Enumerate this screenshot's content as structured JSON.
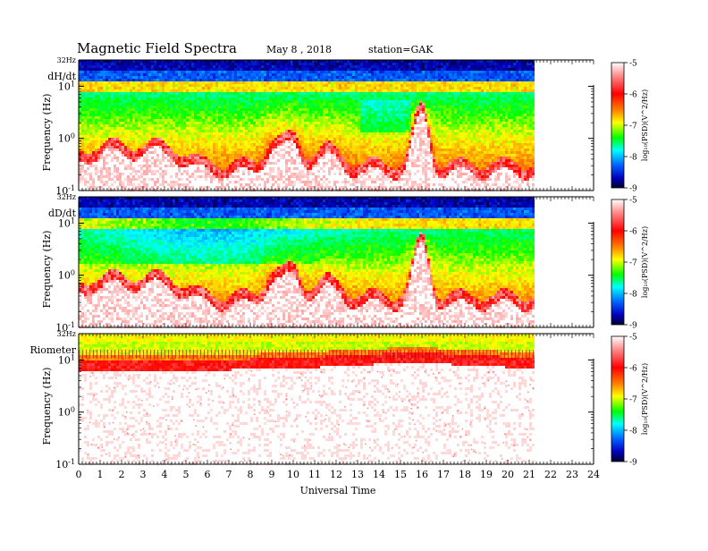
{
  "header": {
    "title": "Magnetic  Field  Spectra",
    "date": "May 8  , 2018",
    "station": "station=GAK"
  },
  "chart_data": {
    "type": "heatmap",
    "title": "Magnetic  Field  Spectra",
    "xlabel": "Universal  Time",
    "xlim": [
      0,
      24
    ],
    "x_ticks": [
      "0",
      "1",
      "2",
      "3",
      "4",
      "5",
      "6",
      "7",
      "8",
      "9",
      "10",
      "11",
      "12",
      "13",
      "14",
      "15",
      "16",
      "17",
      "18",
      "19",
      "20",
      "21",
      "22",
      "23",
      "24"
    ],
    "data_end_hour": 21.2,
    "y_scale": "log",
    "ylim": [
      0.1,
      32
    ],
    "panels": [
      {
        "name": "dH/dt",
        "ylabel": "Frequency  (Hz)",
        "top_label": "32Hz",
        "y_ticks": [
          {
            "base": "10",
            "exp": "1",
            "value": 10
          },
          {
            "base": "10",
            "exp": "0",
            "value": 1
          },
          {
            "base": "10",
            "exp": "-1",
            "value": 0.1
          }
        ],
        "colorbar": {
          "label": "log₁₀(PSD)(V^2/Hz)",
          "range": [
            -9,
            -5
          ],
          "ticks": [
            "-5",
            "-6",
            "-7",
            "-8",
            "-9"
          ]
        }
      },
      {
        "name": "dD/dt",
        "ylabel": "Frequency  (Hz)",
        "top_label": "32Hz",
        "y_ticks": [
          {
            "base": "10",
            "exp": "1",
            "value": 10
          },
          {
            "base": "10",
            "exp": "0",
            "value": 1
          },
          {
            "base": "10",
            "exp": "-1",
            "value": 0.1
          }
        ],
        "colorbar": {
          "label": "log₁₀(PSD)(V^2/Hz)",
          "range": [
            -9,
            -5
          ],
          "ticks": [
            "-5",
            "-6",
            "-7",
            "-8",
            "-9"
          ]
        }
      },
      {
        "name": "Riometer",
        "ylabel": "Frequency  (Hz)",
        "top_label": "32Hz",
        "y_ticks": [
          {
            "base": "10",
            "exp": "1",
            "value": 10
          },
          {
            "base": "10",
            "exp": "0",
            "value": 1
          },
          {
            "base": "10",
            "exp": "-1",
            "value": 0.1
          }
        ],
        "colorbar": {
          "label": "log₁₀(PSD)(V^2/Hz)",
          "range": [
            -9,
            -5
          ],
          "ticks": [
            "-5",
            "-6",
            "-7",
            "-8",
            "-9"
          ]
        }
      }
    ],
    "colormap": [
      "#000040",
      "#0000ff",
      "#00ffff",
      "#00ff00",
      "#ffff00",
      "#ff0000",
      "#ffffff"
    ],
    "grid": false,
    "legend": "none"
  }
}
